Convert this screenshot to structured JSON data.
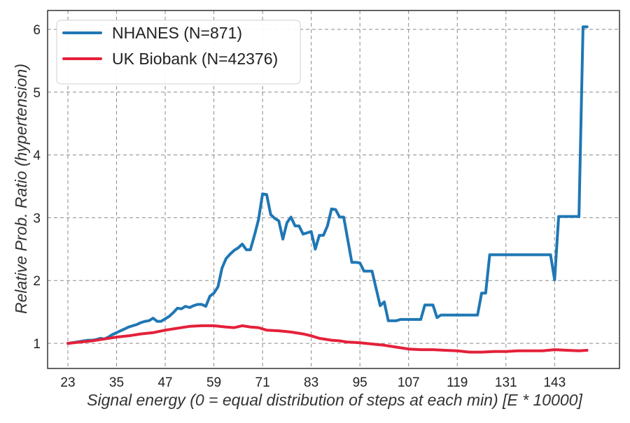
{
  "chart_data": {
    "type": "line",
    "xlabel": "Signal energy (0 = equal distribution of steps at each min) [E * 10000]",
    "ylabel": "Relative Prob. Ratio (hypertension)",
    "xlim": [
      18,
      159
    ],
    "ylim": [
      0.6,
      6.3
    ],
    "x_ticks": [
      23,
      35,
      47,
      59,
      71,
      83,
      95,
      107,
      119,
      131,
      143
    ],
    "y_ticks": [
      1,
      2,
      3,
      4,
      5,
      6
    ],
    "grid": true,
    "legend_position": "top-left",
    "series": [
      {
        "name": "NHANES (N=871)",
        "color": "#1f77b4",
        "points": [
          [
            23,
            1.0
          ],
          [
            25,
            1.02
          ],
          [
            27,
            1.04
          ],
          [
            28,
            1.05
          ],
          [
            29,
            1.05
          ],
          [
            30,
            1.06
          ],
          [
            31,
            1.08
          ],
          [
            32,
            1.07
          ],
          [
            33,
            1.1
          ],
          [
            34,
            1.14
          ],
          [
            35,
            1.17
          ],
          [
            36,
            1.2
          ],
          [
            37,
            1.23
          ],
          [
            38,
            1.26
          ],
          [
            39,
            1.28
          ],
          [
            40,
            1.3
          ],
          [
            41,
            1.33
          ],
          [
            42,
            1.35
          ],
          [
            43,
            1.36
          ],
          [
            44,
            1.4
          ],
          [
            45,
            1.35
          ],
          [
            46,
            1.35
          ],
          [
            47,
            1.39
          ],
          [
            48,
            1.43
          ],
          [
            49,
            1.49
          ],
          [
            50,
            1.56
          ],
          [
            51,
            1.55
          ],
          [
            52,
            1.59
          ],
          [
            53,
            1.57
          ],
          [
            54,
            1.6
          ],
          [
            55,
            1.62
          ],
          [
            56,
            1.62
          ],
          [
            57,
            1.59
          ],
          [
            58,
            1.75
          ],
          [
            59,
            1.8
          ],
          [
            60,
            1.9
          ],
          [
            61,
            2.2
          ],
          [
            62,
            2.35
          ],
          [
            63,
            2.42
          ],
          [
            64,
            2.48
          ],
          [
            65,
            2.52
          ],
          [
            66,
            2.58
          ],
          [
            67,
            2.49
          ],
          [
            68,
            2.49
          ],
          [
            69,
            2.72
          ],
          [
            70,
            2.97
          ],
          [
            71,
            3.38
          ],
          [
            72,
            3.37
          ],
          [
            73,
            3.05
          ],
          [
            74,
            2.99
          ],
          [
            75,
            2.95
          ],
          [
            76,
            2.66
          ],
          [
            77,
            2.92
          ],
          [
            78,
            3.01
          ],
          [
            79,
            2.87
          ],
          [
            80,
            2.87
          ],
          [
            81,
            2.74
          ],
          [
            82,
            2.76
          ],
          [
            83,
            2.78
          ],
          [
            84,
            2.5
          ],
          [
            85,
            2.72
          ],
          [
            86,
            2.72
          ],
          [
            87,
            2.87
          ],
          [
            88,
            3.14
          ],
          [
            89,
            3.13
          ],
          [
            90,
            3.01
          ],
          [
            91,
            3.01
          ],
          [
            93,
            2.29
          ],
          [
            94,
            2.29
          ],
          [
            95,
            2.28
          ],
          [
            96,
            2.15
          ],
          [
            98,
            2.15
          ],
          [
            100,
            1.6
          ],
          [
            101,
            1.66
          ],
          [
            102,
            1.36
          ],
          [
            104,
            1.36
          ],
          [
            105,
            1.38
          ],
          [
            110,
            1.38
          ],
          [
            111,
            1.61
          ],
          [
            113,
            1.61
          ],
          [
            114,
            1.41
          ],
          [
            115,
            1.45
          ],
          [
            124,
            1.45
          ],
          [
            125,
            1.8
          ],
          [
            126,
            1.8
          ],
          [
            127,
            2.41
          ],
          [
            142,
            2.41
          ],
          [
            143,
            2.01
          ],
          [
            144,
            3.02
          ],
          [
            149,
            3.02
          ],
          [
            150,
            6.04
          ],
          [
            151,
            6.04
          ]
        ]
      },
      {
        "name": "UK Biobank (N=42376)",
        "color": "#e5203a",
        "points": [
          [
            23,
            1.0
          ],
          [
            26,
            1.02
          ],
          [
            29,
            1.04
          ],
          [
            32,
            1.07
          ],
          [
            35,
            1.1
          ],
          [
            38,
            1.12
          ],
          [
            41,
            1.15
          ],
          [
            44,
            1.17
          ],
          [
            47,
            1.21
          ],
          [
            50,
            1.24
          ],
          [
            53,
            1.27
          ],
          [
            56,
            1.28
          ],
          [
            59,
            1.28
          ],
          [
            62,
            1.26
          ],
          [
            64,
            1.25
          ],
          [
            66,
            1.28
          ],
          [
            68,
            1.26
          ],
          [
            70,
            1.25
          ],
          [
            72,
            1.21
          ],
          [
            75,
            1.2
          ],
          [
            78,
            1.18
          ],
          [
            81,
            1.15
          ],
          [
            83,
            1.12
          ],
          [
            85,
            1.08
          ],
          [
            88,
            1.05
          ],
          [
            90,
            1.04
          ],
          [
            92,
            1.02
          ],
          [
            95,
            1.01
          ],
          [
            98,
            0.99
          ],
          [
            101,
            0.97
          ],
          [
            104,
            0.94
          ],
          [
            107,
            0.91
          ],
          [
            110,
            0.9
          ],
          [
            113,
            0.9
          ],
          [
            116,
            0.89
          ],
          [
            119,
            0.88
          ],
          [
            122,
            0.86
          ],
          [
            125,
            0.86
          ],
          [
            128,
            0.87
          ],
          [
            131,
            0.87
          ],
          [
            134,
            0.88
          ],
          [
            137,
            0.88
          ],
          [
            140,
            0.88
          ],
          [
            143,
            0.9
          ],
          [
            146,
            0.89
          ],
          [
            149,
            0.88
          ],
          [
            151,
            0.89
          ]
        ]
      }
    ]
  }
}
